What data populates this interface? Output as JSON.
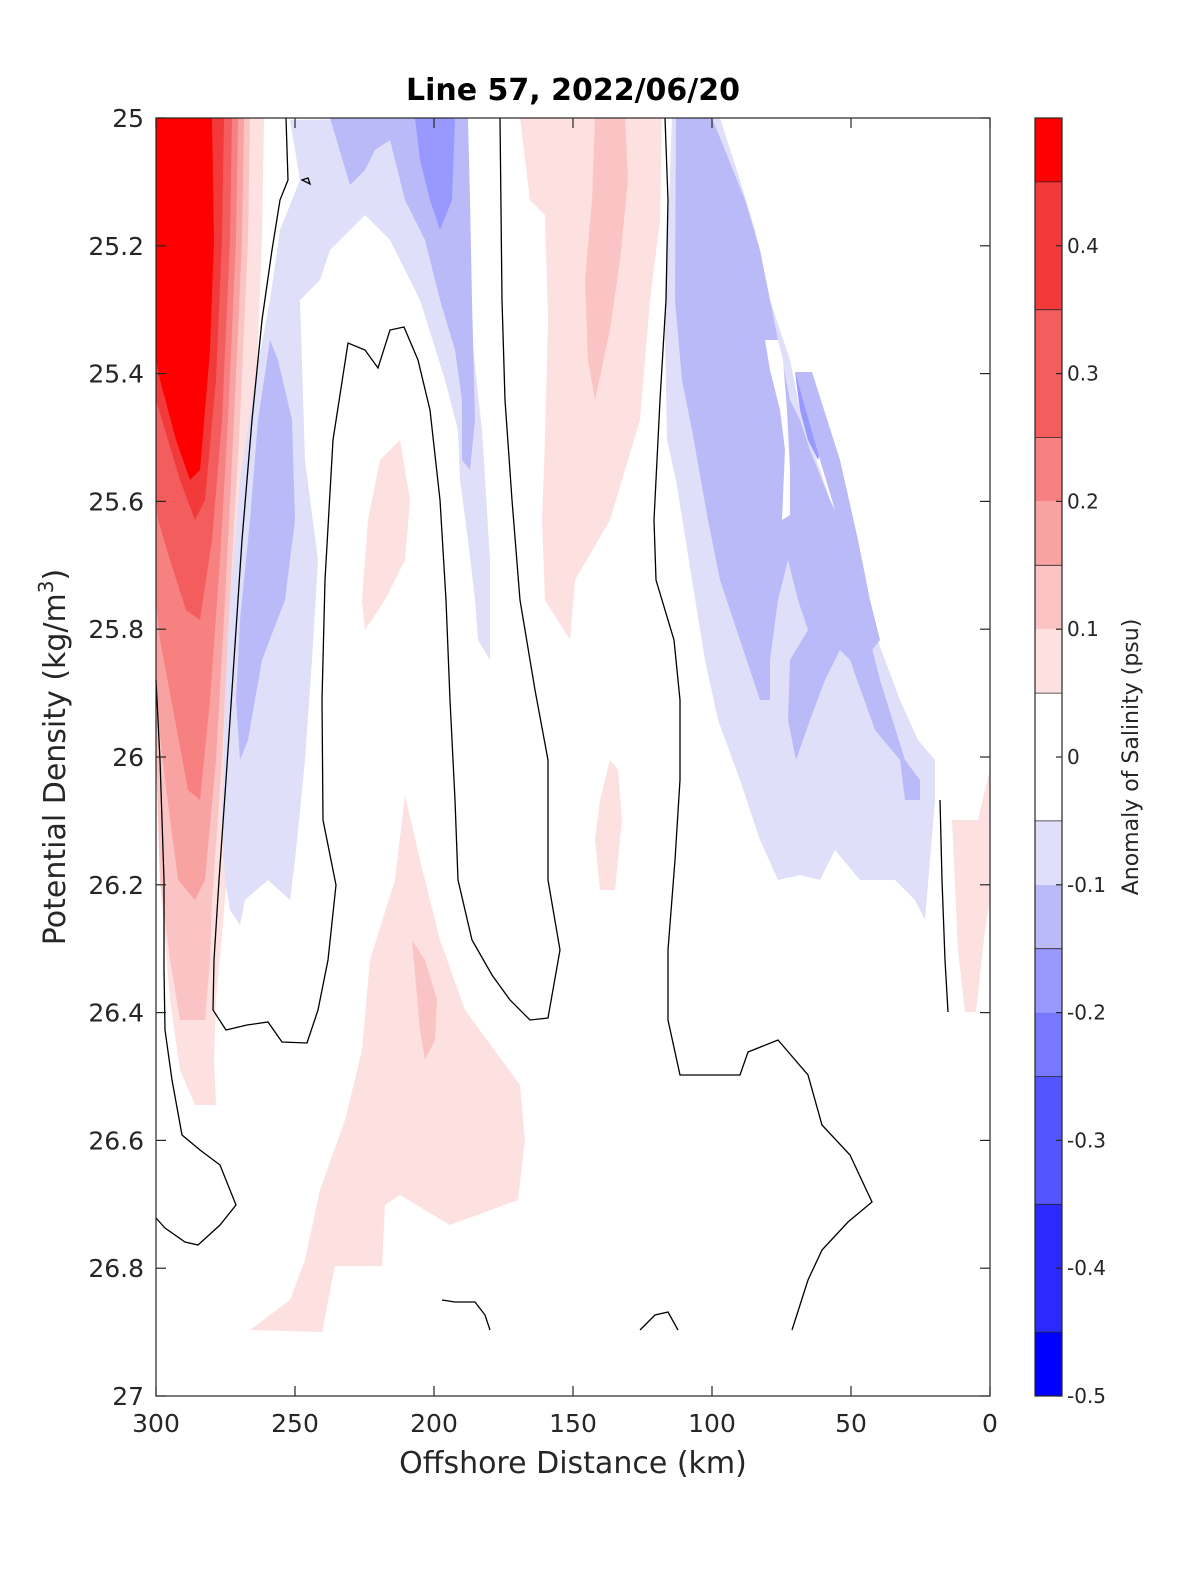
{
  "chart_data": {
    "type": "heatmap",
    "subtype": "filled contour section",
    "title": "Line 57, 2022/06/20",
    "xlabel": "Offshore Distance (km)",
    "ylabel_main": "Potential Density (kg/m",
    "ylabel_sup": "3",
    "ylabel_close": ")",
    "colorbar_label": "Anomaly of Salinity (psu)",
    "x_reversed": true,
    "xlim": [
      0,
      300
    ],
    "ylim": [
      25,
      27
    ],
    "y_reversed": true,
    "x_ticks": [
      300,
      250,
      200,
      150,
      100,
      50,
      0
    ],
    "x_tick_labels": [
      "300",
      "250",
      "200",
      "150",
      "100",
      "50",
      "0"
    ],
    "y_ticks": [
      25,
      25.2,
      25.4,
      25.6,
      25.8,
      26,
      26.2,
      26.4,
      26.6,
      26.8,
      27
    ],
    "y_tick_labels": [
      "25",
      "25.2",
      "25.4",
      "25.6",
      "25.8",
      "26",
      "26.2",
      "26.4",
      "26.6",
      "26.8",
      "27"
    ],
    "colorbar_range": [
      -0.5,
      0.5
    ],
    "colorbar_ticks": [
      -0.5,
      -0.4,
      -0.3,
      -0.2,
      -0.1,
      0,
      0.1,
      0.2,
      0.3,
      0.4
    ],
    "colorbar_tick_labels": [
      "-0.5",
      "-0.4",
      "-0.3",
      "-0.2",
      "-0.1",
      "0",
      "0.1",
      "0.2",
      "0.3",
      "0.4"
    ],
    "color_levels": [
      {
        "min": -0.5,
        "max": -0.45,
        "color": "#0000ff"
      },
      {
        "min": -0.45,
        "max": -0.35,
        "color": "#2a2aff"
      },
      {
        "min": -0.35,
        "max": -0.25,
        "color": "#5555ff"
      },
      {
        "min": -0.25,
        "max": -0.2,
        "color": "#7777ff"
      },
      {
        "min": -0.2,
        "max": -0.15,
        "color": "#9898ff"
      },
      {
        "min": -0.15,
        "max": -0.1,
        "color": "#babaf8"
      },
      {
        "min": -0.1,
        "max": -0.05,
        "color": "#dfdff9"
      },
      {
        "min": -0.05,
        "max": 0.05,
        "color": "#ffffff"
      },
      {
        "min": 0.05,
        "max": 0.1,
        "color": "#fde0e0"
      },
      {
        "min": 0.1,
        "max": 0.15,
        "color": "#fbc4c4"
      },
      {
        "min": 0.15,
        "max": 0.2,
        "color": "#f9a2a2"
      },
      {
        "min": 0.2,
        "max": 0.25,
        "color": "#f78080"
      },
      {
        "min": 0.25,
        "max": 0.35,
        "color": "#f45d5d"
      },
      {
        "min": 0.35,
        "max": 0.45,
        "color": "#f23a3a"
      },
      {
        "min": 0.45,
        "max": 0.5,
        "color": "#ff0000"
      }
    ],
    "anomaly_regions": [
      {
        "name": "nearshore-core-max",
        "level": 0.45,
        "color": "#ff0000",
        "points": [
          [
            300,
            25
          ],
          [
            285,
            25
          ],
          [
            282,
            25.3
          ],
          [
            283,
            25.6
          ],
          [
            290,
            25.8
          ],
          [
            300,
            25.75
          ]
        ]
      },
      {
        "name": "offshore-high-salinity-tongue",
        "level": 0.1,
        "color": "#fde0e0",
        "points": [
          [
            300,
            25
          ],
          [
            265,
            25
          ],
          [
            266,
            25.3
          ],
          [
            270,
            25.7
          ],
          [
            274,
            26.1
          ],
          [
            276,
            26.4
          ],
          [
            278,
            26.55
          ],
          [
            287,
            26.52
          ],
          [
            293,
            26.2
          ],
          [
            298,
            25.9
          ],
          [
            300,
            25.8
          ]
        ]
      },
      {
        "name": "positive-anomaly-deep-patch",
        "level": 0.1,
        "color": "#fde0e0",
        "points": [
          [
            202,
            26.05
          ],
          [
            195,
            26.3
          ],
          [
            185,
            26.4
          ],
          [
            168,
            26.55
          ],
          [
            163,
            26.75
          ],
          [
            190,
            26.72
          ],
          [
            200,
            26.78
          ],
          [
            222,
            26.8
          ],
          [
            240,
            26.8
          ],
          [
            255,
            26.9
          ],
          [
            240,
            26.9
          ],
          [
            238,
            26.75
          ],
          [
            225,
            26.6
          ],
          [
            220,
            26.4
          ],
          [
            213,
            26.15
          ],
          [
            208,
            26.05
          ]
        ]
      },
      {
        "name": "negative-anomaly-band",
        "level": -0.1,
        "color": "#babaf8",
        "points": [
          [
            238,
            25
          ],
          [
            205,
            25
          ],
          [
            192,
            25.3
          ],
          [
            185,
            25.6
          ],
          [
            180,
            25.9
          ],
          [
            195,
            25.8
          ],
          [
            200,
            25.5
          ],
          [
            210,
            25.2
          ],
          [
            225,
            25.1
          ],
          [
            232,
            25.05
          ]
        ]
      },
      {
        "name": "negative-anomaly-band-2",
        "level": -0.1,
        "color": "#babaf8",
        "points": [
          [
            260,
            25.45
          ],
          [
            262,
            25.6
          ],
          [
            265,
            25.9
          ],
          [
            258,
            25.95
          ],
          [
            250,
            25.8
          ],
          [
            248,
            25.6
          ],
          [
            252,
            25.4
          ]
        ]
      },
      {
        "name": "negative-anomaly-band-3",
        "level": -0.1,
        "color": "#babaf8",
        "points": [
          [
            98,
            25
          ],
          [
            92,
            25.1
          ],
          [
            88,
            25.25
          ],
          [
            78,
            25.5
          ],
          [
            72,
            25.8
          ],
          [
            62,
            25.95
          ],
          [
            55,
            25.85
          ],
          [
            50,
            25.6
          ],
          [
            57,
            25.4
          ],
          [
            70,
            25.3
          ],
          [
            80,
            25.2
          ],
          [
            88,
            25.05
          ],
          [
            92,
            25
          ]
        ]
      },
      {
        "name": "nearshore-positive",
        "level": 0.1,
        "color": "#fde0e0",
        "points": [
          [
            12,
            26.1
          ],
          [
            5,
            26.1
          ],
          [
            2,
            25.95
          ],
          [
            0,
            26.0
          ],
          [
            0,
            26.4
          ],
          [
            5,
            26.38
          ],
          [
            10,
            26.25
          ]
        ]
      }
    ],
    "zero_contour_lines": 7
  }
}
